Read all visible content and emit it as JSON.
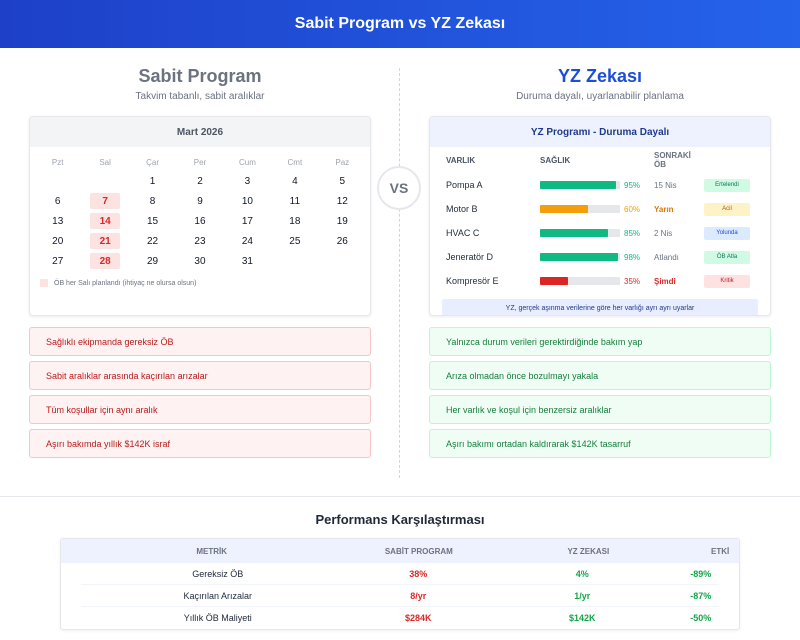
{
  "header": {
    "title": "Sabit Program vs YZ Zekası"
  },
  "vs_label": "VS",
  "left": {
    "title": "Sabit Program",
    "subtitle": "Takvim tabanlı, sabit aralıklar",
    "calendar": {
      "month": "Mart 2026",
      "day_names": [
        "Pzt",
        "Sal",
        "Çar",
        "Per",
        "Cum",
        "Cmt",
        "Paz"
      ],
      "weeks": [
        [
          "",
          "",
          "1",
          "2",
          "3",
          "4",
          "5"
        ],
        [
          "6",
          "7",
          "8",
          "9",
          "10",
          "11",
          "12"
        ],
        [
          "13",
          "14",
          "15",
          "16",
          "17",
          "18",
          "19"
        ],
        [
          "20",
          "21",
          "22",
          "23",
          "24",
          "25",
          "26"
        ],
        [
          "27",
          "28",
          "29",
          "30",
          "31",
          "",
          ""
        ]
      ],
      "highlighted_days": [
        "7",
        "14",
        "21",
        "28"
      ],
      "legend": "ÖB her Salı planlandı (ihtiyaç ne olursa olsun)"
    },
    "items": [
      "Sağlıklı ekipmanda gereksiz ÖB",
      "Sabit aralıklar arasında kaçırılan arızalar",
      "Tüm koşullar için aynı aralık",
      "Aşırı bakımda yıllık $142K israf"
    ]
  },
  "right": {
    "title": "YZ Zekası",
    "subtitle": "Duruma dayalı, uyarlanabilir planlama",
    "card_title": "YZ Programı - Duruma Dayalı",
    "columns": {
      "asset": "VARLIK",
      "health": "SAĞLIK",
      "next": "SONRAKİ ÖB"
    },
    "assets": [
      {
        "name": "Pompa A",
        "health": 95,
        "pct": "95%",
        "next": "15 Nis",
        "badge": "Ertelendi",
        "color": "#10b981",
        "next_color": "#6b7280",
        "badge_bg": "#d1fae5",
        "badge_fg": "#047857"
      },
      {
        "name": "Motor B",
        "health": 60,
        "pct": "60%",
        "next": "Yarın",
        "badge": "Acil",
        "color": "#f59e0b",
        "next_color": "#d97706",
        "badge_bg": "#fef3c7",
        "badge_fg": "#b45309"
      },
      {
        "name": "HVAC C",
        "health": 85,
        "pct": "85%",
        "next": "2 Nis",
        "badge": "Yolunda",
        "color": "#10b981",
        "next_color": "#6b7280",
        "badge_bg": "#dbeafe",
        "badge_fg": "#1d4ed8"
      },
      {
        "name": "Jeneratör D",
        "health": 98,
        "pct": "98%",
        "next": "Atlandı",
        "badge": "ÖB Atla",
        "color": "#10b981",
        "next_color": "#6b7280",
        "badge_bg": "#d1fae5",
        "badge_fg": "#047857"
      },
      {
        "name": "Kompresör E",
        "health": 35,
        "pct": "35%",
        "next": "Şimdi",
        "badge": "Kritik",
        "color": "#dc2626",
        "next_color": "#dc2626",
        "badge_bg": "#fee2e2",
        "badge_fg": "#b91c1c"
      }
    ],
    "note": "YZ, gerçek aşınma verilerine göre her varlığı ayrı ayrı uyarlar",
    "items": [
      "Yalnızca durum verileri gerektirdiğinde bakım yap",
      "Arıza olmadan önce bozulmayı yakala",
      "Her varlık ve koşul için benzersiz aralıklar",
      "Aşırı bakımı ortadan kaldırarak $142K tasarruf"
    ]
  },
  "performance": {
    "title": "Performans Karşılaştırması",
    "headers": [
      "METRİK",
      "SABİT PROGRAM",
      "YZ ZEKASI",
      "ETKİ"
    ],
    "rows": [
      {
        "metric": "Gereksiz ÖB",
        "fixed": "38%",
        "ai": "4%",
        "impact": "-89%"
      },
      {
        "metric": "Kaçırılan Arızalar",
        "fixed": "8/yr",
        "ai": "1/yr",
        "impact": "-87%"
      },
      {
        "metric": "Yıllık ÖB Maliyeti",
        "fixed": "$284K",
        "ai": "$142K",
        "impact": "-50%"
      }
    ]
  }
}
